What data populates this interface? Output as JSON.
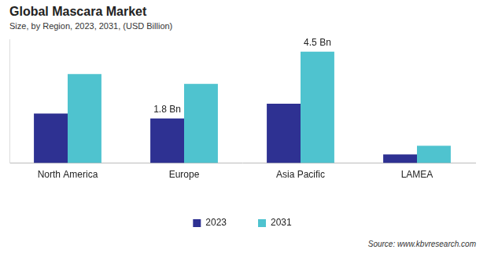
{
  "chart_data": {
    "type": "bar",
    "title": "Global Mascara Market",
    "subtitle": "Size, by Region, 2023, 2031, (USD Billion)",
    "source": "Source: www.kbvresearch.com",
    "categories": [
      "North America",
      "Europe",
      "Asia Pacific",
      "LAMEA"
    ],
    "series": [
      {
        "name": "2023",
        "color": "#2e3192",
        "values": [
          2.0,
          1.8,
          2.4,
          0.35
        ],
        "value_labels": [
          null,
          "1.8 Bn",
          null,
          null
        ]
      },
      {
        "name": "2031",
        "color": "#4fc3cf",
        "values": [
          3.6,
          3.2,
          4.5,
          0.7
        ],
        "value_labels": [
          null,
          null,
          "4.5 Bn",
          null
        ]
      }
    ],
    "ylim": [
      0,
      5
    ],
    "grid": false,
    "legend": "bottom",
    "data_labels": true,
    "tick_labels": "x"
  }
}
